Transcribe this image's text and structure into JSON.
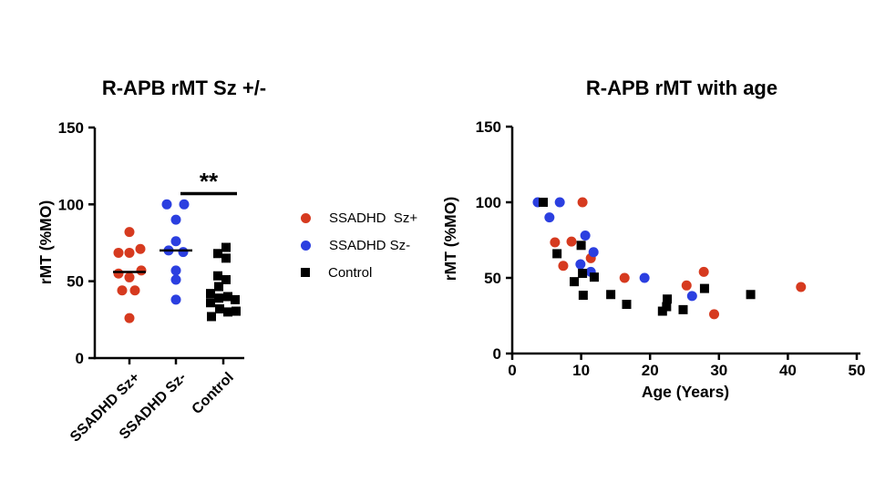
{
  "figure": {
    "background": "#ffffff"
  },
  "colors": {
    "sz_plus": "#d63a1f",
    "sz_minus": "#2b3fe0",
    "control": "#000000",
    "axis": "#000000"
  },
  "legend": {
    "items": [
      {
        "label": "SSADHD  Sz+",
        "marker": "circle",
        "color": "#d63a1f"
      },
      {
        "label": "SSADHD Sz-",
        "marker": "circle",
        "color": "#2b3fe0"
      },
      {
        "label": "Control",
        "marker": "square",
        "color": "#000000"
      }
    ]
  },
  "chart_data": [
    {
      "type": "scatter",
      "subtype": "column-scatter",
      "title": "R-APB rMT Sz +/-",
      "xlabel": "",
      "ylabel": "rMT (%MO)",
      "ylim": [
        0,
        150
      ],
      "yticks": [
        0,
        50,
        100,
        150
      ],
      "grid": false,
      "significance": {
        "label": "**",
        "from_category": "SSADHD Sz-",
        "to_category": "Control",
        "bar_y": 107
      },
      "categories": [
        {
          "label": "SSADHD Sz+",
          "marker": "circle",
          "color": "#d63a1f",
          "median": 56,
          "values": [
            82,
            71,
            68.5,
            68.5,
            57,
            55,
            52.5,
            44,
            44,
            26
          ],
          "jitter": [
            0,
            12,
            -12,
            0,
            13,
            -12,
            0,
            -8,
            6,
            0
          ]
        },
        {
          "label": "SSADHD Sz-",
          "marker": "circle",
          "color": "#2b3fe0",
          "median": 70,
          "values": [
            100,
            100,
            90,
            76,
            70,
            69,
            57,
            51,
            38
          ],
          "jitter": [
            -10,
            9,
            0,
            0,
            -8,
            8,
            0,
            0,
            0
          ]
        },
        {
          "label": "Control",
          "marker": "square",
          "color": "#000000",
          "median": 40,
          "values": [
            72,
            68,
            65,
            53.5,
            51,
            46.5,
            42,
            40,
            39,
            38,
            36,
            32,
            30.5,
            30,
            27
          ],
          "jitter": [
            3,
            -6,
            3,
            -6,
            3,
            -5,
            -14,
            5,
            -5,
            13,
            -14,
            -4,
            14,
            5,
            -13
          ]
        }
      ]
    },
    {
      "type": "scatter",
      "title": "R-APB rMT with age",
      "xlabel": "Age (Years)",
      "ylabel": "rMT (%MO)",
      "xlim": [
        0,
        50
      ],
      "xticks": [
        0,
        10,
        20,
        30,
        40,
        50
      ],
      "ylim": [
        0,
        150
      ],
      "yticks": [
        0,
        50,
        100,
        150
      ],
      "grid": false,
      "legend_position": "none",
      "series": [
        {
          "name": "SSADHD Sz+",
          "marker": "circle",
          "color": "#d63a1f",
          "points": [
            [
              10.2,
              100
            ],
            [
              6.2,
              73.5
            ],
            [
              8.6,
              74
            ],
            [
              11.4,
              63
            ],
            [
              7.4,
              58
            ],
            [
              16.3,
              50
            ],
            [
              25.3,
              45
            ],
            [
              27.8,
              54
            ],
            [
              29.3,
              26
            ],
            [
              41.9,
              44
            ]
          ]
        },
        {
          "name": "SSADHD Sz-",
          "marker": "circle",
          "color": "#2b3fe0",
          "points": [
            [
              3.7,
              100
            ],
            [
              6.9,
              100
            ],
            [
              5.4,
              90
            ],
            [
              10.6,
              78
            ],
            [
              11.8,
              67
            ],
            [
              9.9,
              59
            ],
            [
              11.4,
              54
            ],
            [
              19.2,
              50
            ],
            [
              26.1,
              38
            ]
          ]
        },
        {
          "name": "Control",
          "marker": "square",
          "color": "#000000",
          "points": [
            [
              4.5,
              100
            ],
            [
              6.5,
              66
            ],
            [
              10.0,
              71.5
            ],
            [
              9.0,
              47.5
            ],
            [
              10.2,
              53
            ],
            [
              11.9,
              50.5
            ],
            [
              10.3,
              38.5
            ],
            [
              14.3,
              39
            ],
            [
              16.6,
              32.5
            ],
            [
              21.8,
              28
            ],
            [
              22.4,
              31
            ],
            [
              22.5,
              36
            ],
            [
              24.8,
              29
            ],
            [
              27.9,
              43
            ],
            [
              34.6,
              39
            ]
          ]
        }
      ]
    }
  ]
}
